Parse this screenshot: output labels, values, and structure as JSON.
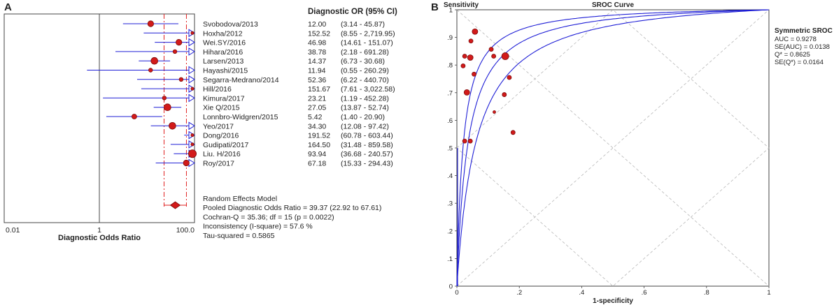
{
  "panels": {
    "a_label": "A",
    "b_label": "B"
  },
  "colors": {
    "marker_fill": "#d21a1a",
    "marker_stroke": "#7a0a0a",
    "ci_line": "#1f1fd6",
    "dashed_line": "#e02020",
    "curve": "#1f1fd6",
    "text": "#222222"
  },
  "chart_data": [
    {
      "type": "forest",
      "title": "Diagnostic OR (95% CI)",
      "xlabel": "Diagnostic Odds Ratio",
      "x_scale": "log",
      "xlim": [
        0.01,
        100.0
      ],
      "x_ticks": [
        "0.01",
        "1",
        "100.0"
      ],
      "reference_line": 1,
      "pooled_ci_lines": [
        22.92,
        67.61
      ],
      "studies": [
        {
          "name": "Svobodova/2013",
          "or": 12.0,
          "lo": 3.14,
          "hi": 45.87,
          "ci_text": "12.00",
          "range_text": "(3.14 - 45.87)",
          "weight": 6,
          "arrow": false
        },
        {
          "name": "Hoxha/2012",
          "or": 152.52,
          "lo": 8.55,
          "hi": 2719.95,
          "ci_text": "152.52",
          "range_text": "(8.55 - 2,719.95)",
          "weight": 3,
          "arrow": true
        },
        {
          "name": "Wei.SY/2016",
          "or": 46.98,
          "lo": 14.61,
          "hi": 151.07,
          "ci_text": "46.98",
          "range_text": "(14.61 - 151.07)",
          "weight": 6,
          "arrow": true
        },
        {
          "name": "Hihara/2016",
          "or": 38.78,
          "lo": 2.18,
          "hi": 691.28,
          "ci_text": "38.78",
          "range_text": "(2.18 - 691.28)",
          "weight": 4,
          "arrow": true
        },
        {
          "name": "Larsen/2013",
          "or": 14.37,
          "lo": 6.73,
          "hi": 30.68,
          "ci_text": "14.37",
          "range_text": "(6.73 - 30.68)",
          "weight": 7,
          "arrow": false
        },
        {
          "name": "Hayashi/2015",
          "or": 11.94,
          "lo": 0.55,
          "hi": 260.29,
          "ci_text": "11.94",
          "range_text": "(0.55 - 260.29)",
          "weight": 4,
          "arrow": true
        },
        {
          "name": "Segarra-Medrano/2014",
          "or": 52.36,
          "lo": 6.22,
          "hi": 440.7,
          "ci_text": "52.36",
          "range_text": "(6.22 - 440.70)",
          "weight": 4,
          "arrow": true
        },
        {
          "name": "Hill/2016",
          "or": 151.67,
          "lo": 7.61,
          "hi": 3022.58,
          "ci_text": "151.67",
          "range_text": "(7.61 - 3,022.58)",
          "weight": 3,
          "arrow": true
        },
        {
          "name": "Kimura/2017",
          "or": 23.21,
          "lo": 1.19,
          "hi": 452.28,
          "ci_text": "23.21",
          "range_text": "(1.19 - 452.28)",
          "weight": 4,
          "arrow": true
        },
        {
          "name": "Xie Q/2015",
          "or": 27.05,
          "lo": 13.87,
          "hi": 52.74,
          "ci_text": "27.05",
          "range_text": "(13.87 - 52.74)",
          "weight": 7,
          "arrow": false
        },
        {
          "name": "Lonnbro-Widgren/2015",
          "or": 5.42,
          "lo": 1.4,
          "hi": 20.9,
          "ci_text": "5.42",
          "range_text": "(1.40 - 20.90)",
          "weight": 5,
          "arrow": false
        },
        {
          "name": "Yeo/2017",
          "or": 34.3,
          "lo": 12.08,
          "hi": 97.42,
          "ci_text": "34.30",
          "range_text": "(12.08 - 97.42)",
          "weight": 7,
          "arrow": false
        },
        {
          "name": "Dong/2016",
          "or": 191.52,
          "lo": 60.78,
          "hi": 603.44,
          "ci_text": "191.52",
          "range_text": "(60.78 - 603.44)",
          "weight": 3,
          "arrow": true
        },
        {
          "name": "Gudipati/2017",
          "or": 164.5,
          "lo": 31.48,
          "hi": 859.58,
          "ci_text": "164.50",
          "range_text": "(31.48 - 859.58)",
          "weight": 3,
          "arrow": true
        },
        {
          "name": "Liu. H/2016",
          "or": 93.94,
          "lo": 36.68,
          "hi": 240.57,
          "ci_text": "93.94",
          "range_text": "(36.68 - 240.57)",
          "weight": 8,
          "arrow": true
        },
        {
          "name": "Roy/2017",
          "or": 67.18,
          "lo": 15.33,
          "hi": 294.43,
          "ci_text": "67.18",
          "range_text": "(15.33 - 294.43)",
          "weight": 6,
          "arrow": true
        }
      ],
      "pooled": {
        "or": 39.37,
        "lo": 22.92,
        "hi": 67.61
      },
      "summary_lines": [
        "Random Effects Model",
        "Pooled Diagnostic Odds Ratio = 39.37 (22.92 to 67.61)",
        "Cochran-Q = 35.36; df =  15 (p = 0.0022)",
        "Inconsistency (I-square) = 57.6 %",
        "Tau-squared = 0.5865"
      ]
    },
    {
      "type": "scatter",
      "title": "SROC Curve",
      "ylabel": "Sensitivity",
      "xlabel": "1-specificity",
      "xlim": [
        0,
        1
      ],
      "ylim": [
        0,
        1
      ],
      "x_ticks": [
        "0",
        ".2",
        ".4",
        ".6",
        ".8",
        "1"
      ],
      "y_ticks": [
        "0",
        ".1",
        ".2",
        ".3",
        ".4",
        ".5",
        ".6",
        ".7",
        ".8",
        ".9",
        "1"
      ],
      "grid": "diagonal-dashed",
      "auc": 0.9278,
      "legend": {
        "title": "Symmetric SROC",
        "lines": [
          "AUC = 0.9278",
          "SE(AUC) = 0.0138",
          "Q* = 0.8625",
          "SE(Q*) = 0.0164"
        ]
      },
      "points": [
        {
          "x": 0.058,
          "y": 0.921,
          "s": 4
        },
        {
          "x": 0.045,
          "y": 0.887,
          "s": 3
        },
        {
          "x": 0.025,
          "y": 0.832,
          "s": 3
        },
        {
          "x": 0.043,
          "y": 0.827,
          "s": 4
        },
        {
          "x": 0.02,
          "y": 0.797,
          "s": 3
        },
        {
          "x": 0.055,
          "y": 0.767,
          "s": 3
        },
        {
          "x": 0.032,
          "y": 0.701,
          "s": 4
        },
        {
          "x": 0.025,
          "y": 0.525,
          "s": 3
        },
        {
          "x": 0.043,
          "y": 0.525,
          "s": 3
        },
        {
          "x": 0.11,
          "y": 0.857,
          "s": 3
        },
        {
          "x": 0.118,
          "y": 0.832,
          "s": 3
        },
        {
          "x": 0.155,
          "y": 0.832,
          "s": 5
        },
        {
          "x": 0.168,
          "y": 0.755,
          "s": 3
        },
        {
          "x": 0.152,
          "y": 0.693,
          "s": 3
        },
        {
          "x": 0.12,
          "y": 0.63,
          "s": 2
        },
        {
          "x": 0.18,
          "y": 0.556,
          "s": 3
        }
      ]
    }
  ]
}
